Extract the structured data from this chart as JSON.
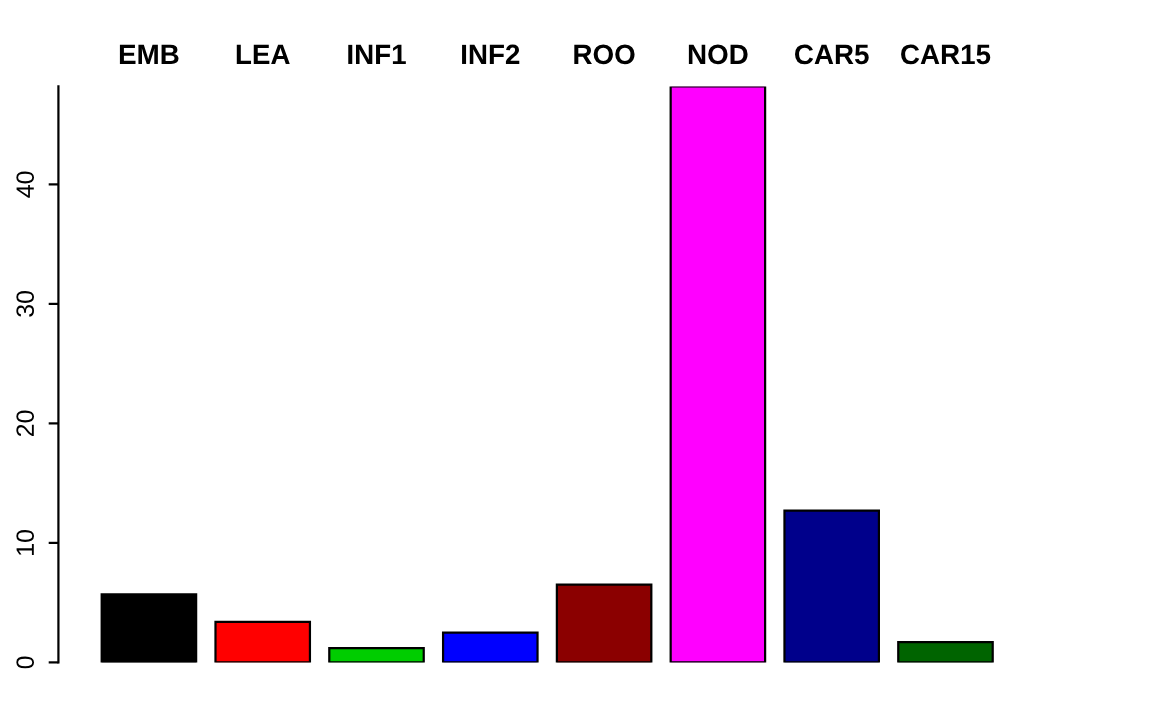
{
  "chart_data": {
    "type": "bar",
    "categories": [
      "EMB",
      "LEA",
      "INF1",
      "INF2",
      "ROO",
      "NOD",
      "CAR5",
      "CAR15"
    ],
    "values": [
      5.7,
      3.4,
      1.2,
      2.5,
      6.5,
      48.2,
      12.7,
      1.7
    ],
    "colors": [
      "#000000",
      "#ff0000",
      "#00cd00",
      "#0000ff",
      "#8b0000",
      "#ff00ff",
      "#00008b",
      "#006400"
    ],
    "ylim": [
      0,
      48.2
    ],
    "yticks": [
      0,
      10,
      20,
      30,
      40
    ],
    "grid": false
  }
}
